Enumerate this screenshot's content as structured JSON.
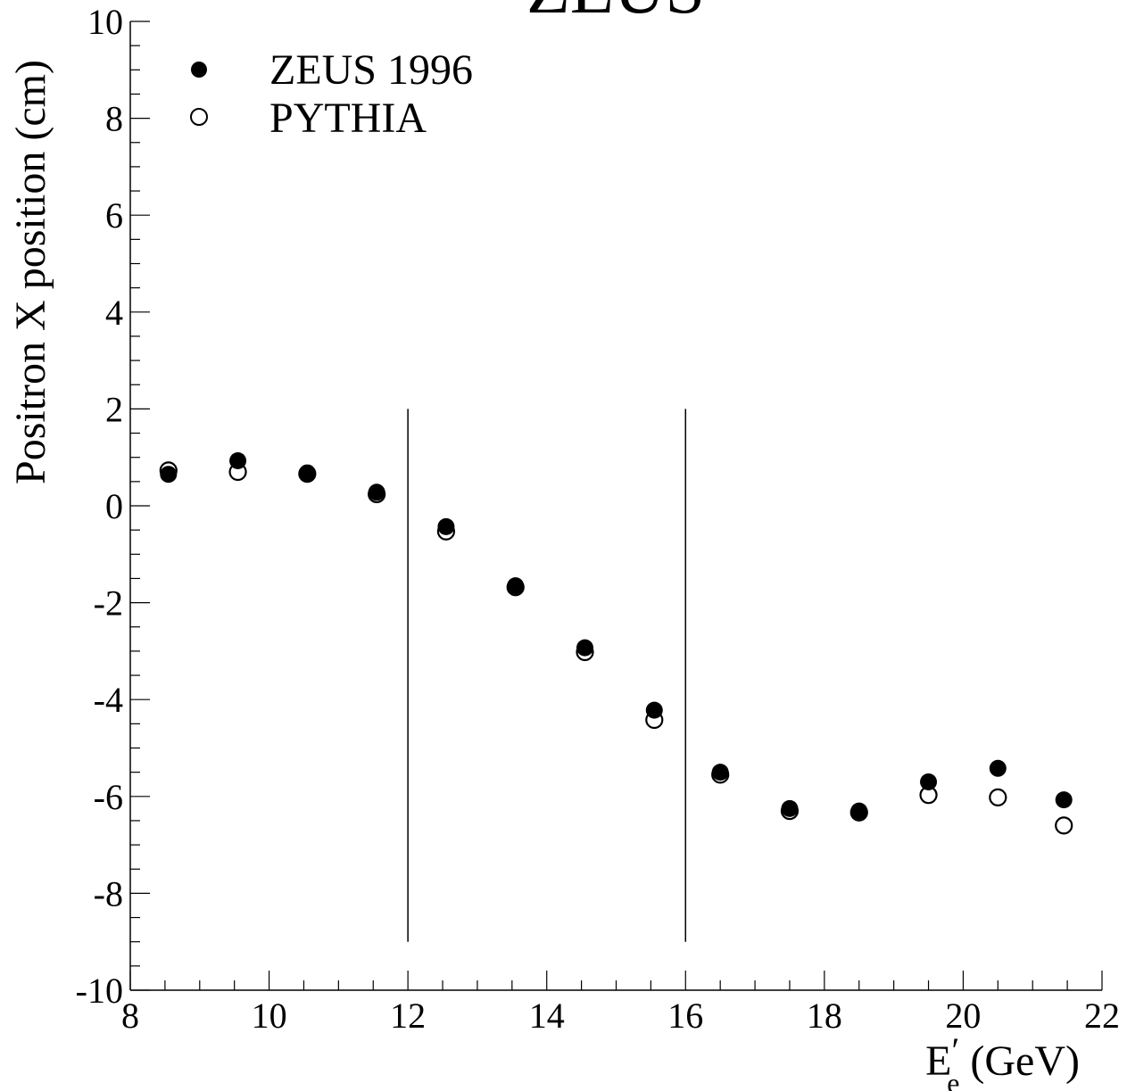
{
  "chart_data": {
    "type": "scatter",
    "title": "ZEUS",
    "xlabel": {
      "main": "E",
      "superscript": "′",
      "subscript": "e",
      "unit": " (GeV)"
    },
    "ylabel": "Positron X position (cm)",
    "xlim": [
      8,
      22
    ],
    "ylim": [
      -10,
      10
    ],
    "x_major_ticks": [
      8,
      10,
      12,
      14,
      16,
      18,
      20,
      22
    ],
    "y_major_ticks": [
      -10,
      -8,
      -6,
      -4,
      -2,
      0,
      2,
      4,
      6,
      8,
      10
    ],
    "x_minor_step": 0.5,
    "y_minor_step": 0.5,
    "grid": false,
    "legend_position": "top-left",
    "cut_lines": [
      {
        "x": 12,
        "y_range": [
          -9,
          2
        ]
      },
      {
        "x": 16,
        "y_range": [
          -9,
          2
        ]
      }
    ],
    "series": [
      {
        "name": "ZEUS 1996",
        "marker": "filled-circle",
        "x": [
          8.55,
          9.55,
          10.55,
          11.55,
          12.55,
          13.55,
          14.55,
          15.55,
          16.5,
          17.5,
          18.5,
          19.5,
          20.5,
          21.45
        ],
        "y": [
          0.65,
          0.93,
          0.68,
          0.28,
          -0.43,
          -1.65,
          -2.93,
          -4.22,
          -5.5,
          -6.25,
          -6.3,
          -5.7,
          -5.42,
          -6.07
        ]
      },
      {
        "name": "PYTHIA",
        "marker": "open-circle",
        "x": [
          8.55,
          9.55,
          10.55,
          11.55,
          12.55,
          13.55,
          14.55,
          15.55,
          16.5,
          17.5,
          18.5,
          19.5,
          20.5,
          21.45
        ],
        "y": [
          0.73,
          0.7,
          0.66,
          0.24,
          -0.53,
          -1.68,
          -3.02,
          -4.42,
          -5.55,
          -6.3,
          -6.33,
          -5.97,
          -6.02,
          -6.6
        ]
      }
    ]
  }
}
